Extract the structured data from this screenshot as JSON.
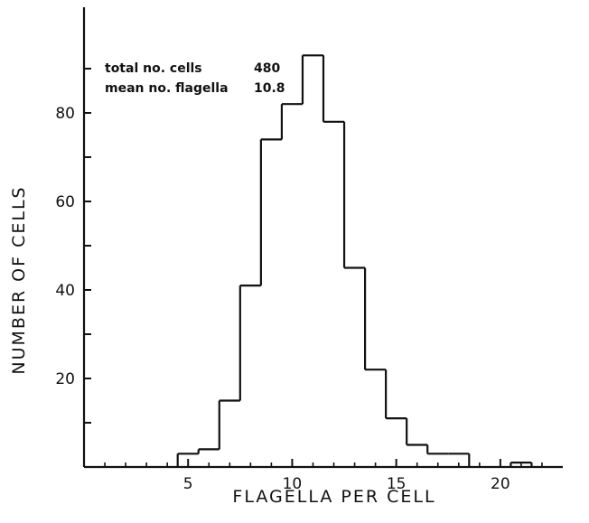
{
  "chart_data": {
    "type": "bar",
    "style": "step-histogram",
    "xlabel": "FLAGELLA PER CELL",
    "ylabel": "NUMBER OF CELLS",
    "xlim": [
      0,
      23
    ],
    "ylim": [
      0,
      100
    ],
    "x_ticks": [
      5,
      10,
      15,
      20
    ],
    "x_tick_labels": [
      "5",
      "10",
      "15",
      "20"
    ],
    "x_minor_ticks": [
      1,
      2,
      3,
      4,
      6,
      7,
      8,
      9,
      11,
      12,
      13,
      14,
      16,
      17,
      18,
      19,
      21,
      22
    ],
    "y_ticks": [
      10,
      20,
      30,
      40,
      50,
      60,
      70,
      80,
      90
    ],
    "y_tick_labels": [
      "",
      "20",
      "",
      "40",
      "",
      "60",
      "",
      "80",
      ""
    ],
    "grid": false,
    "categories": [
      5,
      6,
      7,
      8,
      9,
      10,
      11,
      12,
      13,
      14,
      15,
      16,
      17,
      18,
      19,
      20,
      21
    ],
    "values": [
      3,
      4,
      15,
      41,
      74,
      82,
      93,
      78,
      45,
      22,
      11,
      5,
      3,
      3,
      0,
      0,
      1
    ],
    "annotations": [
      {
        "label": "total no. cells",
        "value": "480"
      },
      {
        "label": "mean no. flagella",
        "value": "10.8"
      }
    ]
  }
}
